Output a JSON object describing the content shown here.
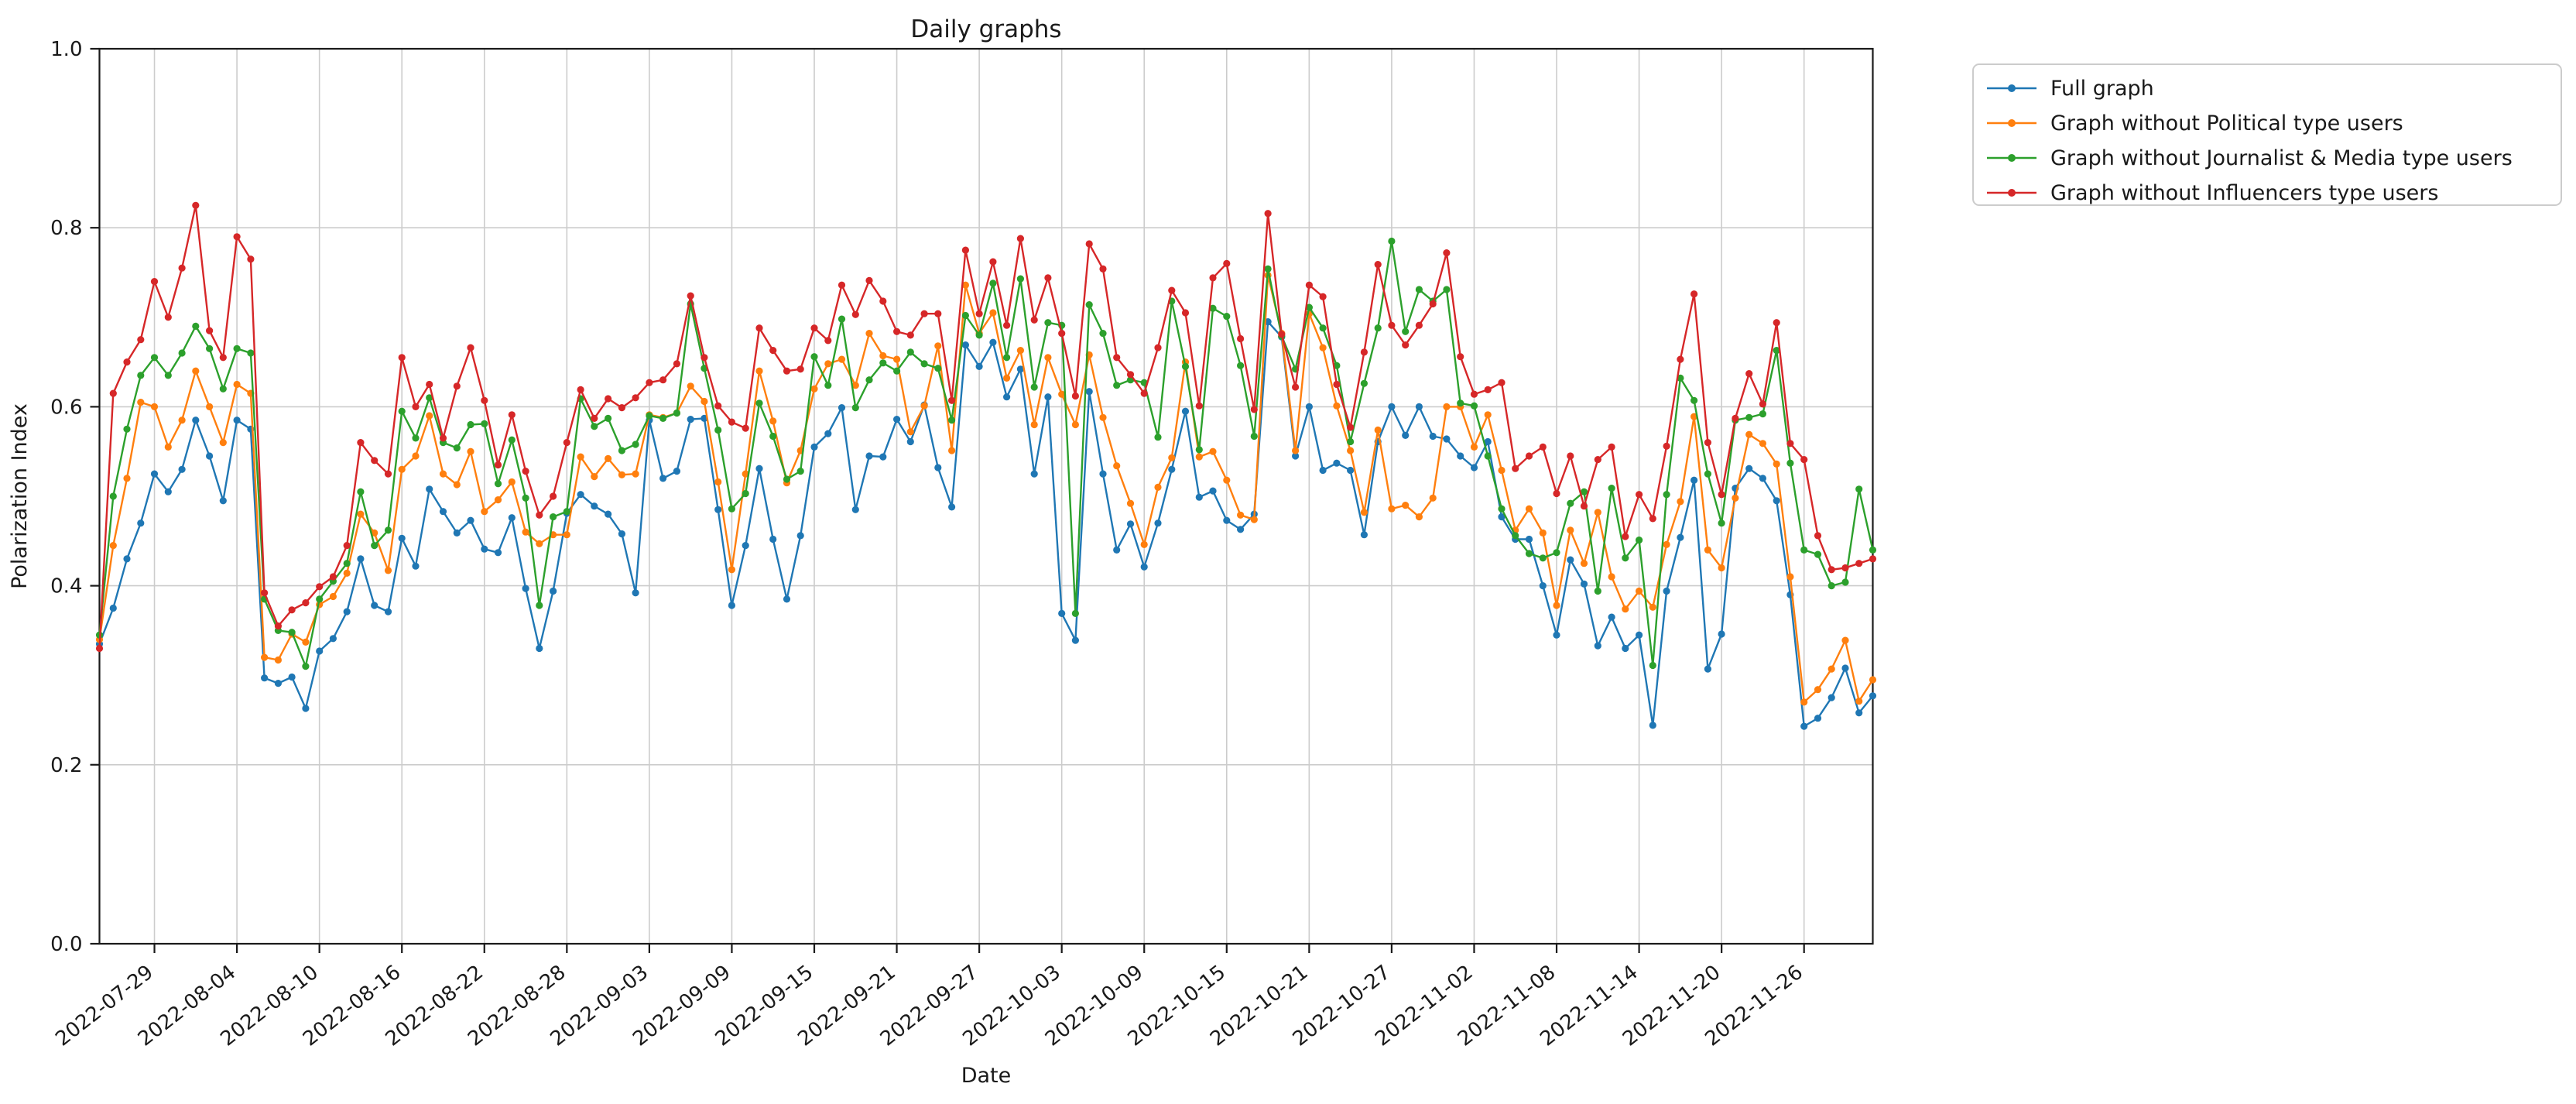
{
  "page": {
    "title": "Daily graphs"
  },
  "chart_data": {
    "type": "line",
    "title": "Daily graphs",
    "xlabel": "Date",
    "ylabel": "Polarization Index",
    "ylim": [
      0.0,
      1.0
    ],
    "y_ticks": [
      "0.0",
      "0.2",
      "0.4",
      "0.6",
      "0.8",
      "1.0"
    ],
    "grid": "on",
    "legend_position": "outside-upper-right",
    "start_date": "2022-07-25",
    "end_date": "2022-12-01",
    "x_tick_day_indices": [
      4,
      10,
      16,
      22,
      28,
      34,
      40,
      46,
      52,
      58,
      64,
      70,
      76,
      82,
      88,
      94,
      100,
      106,
      112,
      118,
      124
    ],
    "x_tick_labels": [
      "2022-07-29",
      "2022-08-04",
      "2022-08-10",
      "2022-08-16",
      "2022-08-22",
      "2022-08-28",
      "2022-09-03",
      "2022-09-09",
      "2022-09-15",
      "2022-09-21",
      "2022-09-27",
      "2022-10-03",
      "2022-10-09",
      "2022-10-15",
      "2022-10-21",
      "2022-10-27",
      "2022-11-02",
      "2022-11-08",
      "2022-11-14",
      "2022-11-20",
      "2022-11-26"
    ],
    "marker": "circle",
    "series": [
      {
        "name": "Full graph",
        "color": "#1f77b4",
        "values": [
          0.335,
          0.375,
          0.43,
          0.47,
          0.525,
          0.505,
          0.53,
          0.585,
          0.545,
          0.495,
          0.585,
          0.575,
          0.297,
          0.291,
          0.298,
          0.263,
          0.327,
          0.341,
          0.371,
          0.43,
          0.378,
          0.371,
          0.453,
          0.422,
          0.508,
          0.483,
          0.459,
          0.473,
          0.441,
          0.437,
          0.476,
          0.397,
          0.33,
          0.394,
          0.481,
          0.502,
          0.489,
          0.48,
          0.458,
          0.392,
          0.585,
          0.52,
          0.528,
          0.586,
          0.587,
          0.485,
          0.378,
          0.445,
          0.531,
          0.452,
          0.385,
          0.456,
          0.555,
          0.57,
          0.599,
          0.485,
          0.545,
          0.544,
          0.586,
          0.561,
          0.602,
          0.532,
          0.488,
          0.669,
          0.645,
          0.672,
          0.611,
          0.642,
          0.525,
          0.611,
          0.369,
          0.339,
          0.617,
          0.525,
          0.44,
          0.469,
          0.421,
          0.47,
          0.53,
          0.595,
          0.499,
          0.506,
          0.473,
          0.463,
          0.48,
          0.695,
          0.678,
          0.545,
          0.6,
          0.529,
          0.537,
          0.529,
          0.457,
          0.561,
          0.6,
          0.568,
          0.6,
          0.567,
          0.564,
          0.545,
          0.532,
          0.561,
          0.477,
          0.452,
          0.452,
          0.4,
          0.345,
          0.429,
          0.402,
          0.333,
          0.365,
          0.33,
          0.345,
          0.244,
          0.394,
          0.454,
          0.518,
          0.307,
          0.346,
          0.509,
          0.531,
          0.52,
          0.495,
          0.39,
          0.243,
          0.252,
          0.275,
          0.308,
          0.258,
          0.277
        ]
      },
      {
        "name": "Graph without Political type users",
        "color": "#ff7f0e",
        "values": [
          0.34,
          0.445,
          0.52,
          0.605,
          0.6,
          0.555,
          0.585,
          0.64,
          0.6,
          0.56,
          0.625,
          0.615,
          0.32,
          0.317,
          0.346,
          0.337,
          0.379,
          0.388,
          0.414,
          0.48,
          0.459,
          0.417,
          0.53,
          0.545,
          0.59,
          0.525,
          0.513,
          0.55,
          0.483,
          0.496,
          0.516,
          0.46,
          0.447,
          0.457,
          0.457,
          0.544,
          0.522,
          0.542,
          0.524,
          0.525,
          0.591,
          0.588,
          0.593,
          0.623,
          0.606,
          0.516,
          0.418,
          0.525,
          0.64,
          0.584,
          0.515,
          0.551,
          0.62,
          0.648,
          0.653,
          0.624,
          0.682,
          0.657,
          0.653,
          0.572,
          0.601,
          0.668,
          0.551,
          0.736,
          0.682,
          0.705,
          0.632,
          0.663,
          0.58,
          0.655,
          0.614,
          0.58,
          0.658,
          0.588,
          0.534,
          0.492,
          0.446,
          0.51,
          0.543,
          0.65,
          0.544,
          0.55,
          0.518,
          0.479,
          0.474,
          0.747,
          0.682,
          0.551,
          0.704,
          0.666,
          0.601,
          0.551,
          0.482,
          0.574,
          0.486,
          0.49,
          0.477,
          0.498,
          0.6,
          0.6,
          0.555,
          0.591,
          0.529,
          0.462,
          0.486,
          0.459,
          0.378,
          0.462,
          0.425,
          0.482,
          0.41,
          0.374,
          0.394,
          0.376,
          0.446,
          0.494,
          0.589,
          0.44,
          0.42,
          0.498,
          0.569,
          0.559,
          0.536,
          0.41,
          0.27,
          0.284,
          0.307,
          0.339,
          0.271,
          0.295
        ]
      },
      {
        "name": "Graph without Journalist & Media type users",
        "color": "#2ca02c",
        "values": [
          0.345,
          0.5,
          0.575,
          0.635,
          0.655,
          0.635,
          0.66,
          0.69,
          0.665,
          0.62,
          0.665,
          0.66,
          0.385,
          0.35,
          0.348,
          0.31,
          0.385,
          0.405,
          0.425,
          0.505,
          0.445,
          0.462,
          0.595,
          0.565,
          0.61,
          0.56,
          0.554,
          0.58,
          0.581,
          0.514,
          0.563,
          0.498,
          0.378,
          0.477,
          0.483,
          0.609,
          0.578,
          0.587,
          0.551,
          0.558,
          0.59,
          0.587,
          0.593,
          0.715,
          0.643,
          0.574,
          0.486,
          0.503,
          0.604,
          0.567,
          0.519,
          0.528,
          0.656,
          0.624,
          0.698,
          0.599,
          0.63,
          0.649,
          0.64,
          0.661,
          0.648,
          0.643,
          0.585,
          0.702,
          0.68,
          0.738,
          0.655,
          0.743,
          0.622,
          0.694,
          0.691,
          0.369,
          0.714,
          0.682,
          0.624,
          0.63,
          0.627,
          0.566,
          0.718,
          0.645,
          0.552,
          0.71,
          0.701,
          0.646,
          0.567,
          0.754,
          0.679,
          0.642,
          0.711,
          0.688,
          0.646,
          0.561,
          0.626,
          0.688,
          0.785,
          0.684,
          0.731,
          0.718,
          0.731,
          0.604,
          0.601,
          0.545,
          0.486,
          0.456,
          0.436,
          0.431,
          0.437,
          0.492,
          0.505,
          0.394,
          0.509,
          0.431,
          0.451,
          0.311,
          0.502,
          0.632,
          0.607,
          0.525,
          0.47,
          0.585,
          0.588,
          0.592,
          0.663,
          0.537,
          0.44,
          0.435,
          0.4,
          0.404,
          0.508,
          0.44
        ]
      },
      {
        "name": "Graph without Influencers type users",
        "color": "#d62728",
        "values": [
          0.33,
          0.615,
          0.65,
          0.675,
          0.74,
          0.7,
          0.755,
          0.825,
          0.685,
          0.655,
          0.79,
          0.765,
          0.392,
          0.355,
          0.373,
          0.381,
          0.399,
          0.41,
          0.445,
          0.56,
          0.54,
          0.525,
          0.655,
          0.6,
          0.625,
          0.565,
          0.623,
          0.666,
          0.607,
          0.535,
          0.591,
          0.528,
          0.479,
          0.5,
          0.56,
          0.619,
          0.587,
          0.609,
          0.599,
          0.61,
          0.627,
          0.63,
          0.648,
          0.724,
          0.655,
          0.601,
          0.583,
          0.576,
          0.688,
          0.663,
          0.64,
          0.642,
          0.688,
          0.674,
          0.736,
          0.703,
          0.741,
          0.718,
          0.684,
          0.68,
          0.704,
          0.704,
          0.607,
          0.775,
          0.704,
          0.762,
          0.691,
          0.788,
          0.697,
          0.744,
          0.682,
          0.612,
          0.782,
          0.754,
          0.655,
          0.636,
          0.615,
          0.666,
          0.73,
          0.705,
          0.601,
          0.744,
          0.76,
          0.676,
          0.597,
          0.816,
          0.681,
          0.622,
          0.736,
          0.723,
          0.625,
          0.577,
          0.661,
          0.759,
          0.691,
          0.669,
          0.691,
          0.715,
          0.772,
          0.656,
          0.614,
          0.619,
          0.627,
          0.531,
          0.545,
          0.555,
          0.503,
          0.545,
          0.489,
          0.541,
          0.555,
          0.455,
          0.502,
          0.475,
          0.556,
          0.653,
          0.726,
          0.56,
          0.502,
          0.587,
          0.637,
          0.603,
          0.694,
          0.559,
          0.541,
          0.456,
          0.418,
          0.42,
          0.425,
          0.43
        ]
      }
    ]
  }
}
